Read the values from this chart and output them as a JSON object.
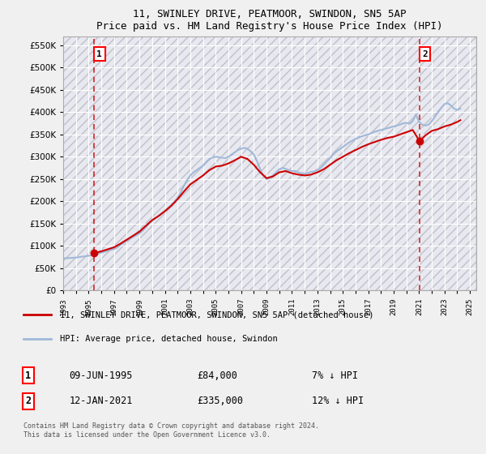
{
  "title": "11, SWINLEY DRIVE, PEATMOOR, SWINDON, SN5 5AP",
  "subtitle": "Price paid vs. HM Land Registry's House Price Index (HPI)",
  "ylabel_ticks": [
    "£0",
    "£50K",
    "£100K",
    "£150K",
    "£200K",
    "£250K",
    "£300K",
    "£350K",
    "£400K",
    "£450K",
    "£500K",
    "£550K"
  ],
  "ytick_values": [
    0,
    50000,
    100000,
    150000,
    200000,
    250000,
    300000,
    350000,
    400000,
    450000,
    500000,
    550000
  ],
  "ylim": [
    0,
    570000
  ],
  "xlim_start": 1993.0,
  "xlim_end": 2025.5,
  "background_color": "#f0f0f0",
  "plot_bg_color": "#e8e8f0",
  "grid_color": "#ffffff",
  "hpi_line_color": "#a0b8d8",
  "price_line_color": "#cc0000",
  "sale1_x": 1995.44,
  "sale1_y": 84000,
  "sale2_x": 2021.04,
  "sale2_y": 335000,
  "legend_label1": "11, SWINLEY DRIVE, PEATMOOR, SWINDON, SN5 5AP (detached house)",
  "legend_label2": "HPI: Average price, detached house, Swindon",
  "annotation1_label": "1",
  "annotation1_date": "09-JUN-1995",
  "annotation1_price": "£84,000",
  "annotation1_hpi": "7% ↓ HPI",
  "annotation2_label": "2",
  "annotation2_date": "12-JAN-2021",
  "annotation2_price": "£335,000",
  "annotation2_hpi": "12% ↓ HPI",
  "copyright_text": "Contains HM Land Registry data © Crown copyright and database right 2024.\nThis data is licensed under the Open Government Licence v3.0.",
  "hpi_data_x": [
    1993.0,
    1993.25,
    1993.5,
    1993.75,
    1994.0,
    1994.25,
    1994.5,
    1994.75,
    1995.0,
    1995.25,
    1995.5,
    1995.75,
    1996.0,
    1996.25,
    1996.5,
    1996.75,
    1997.0,
    1997.25,
    1997.5,
    1997.75,
    1998.0,
    1998.25,
    1998.5,
    1998.75,
    1999.0,
    1999.25,
    1999.5,
    1999.75,
    2000.0,
    2000.25,
    2000.5,
    2000.75,
    2001.0,
    2001.25,
    2001.5,
    2001.75,
    2002.0,
    2002.25,
    2002.5,
    2002.75,
    2003.0,
    2003.25,
    2003.5,
    2003.75,
    2004.0,
    2004.25,
    2004.5,
    2004.75,
    2005.0,
    2005.25,
    2005.5,
    2005.75,
    2006.0,
    2006.25,
    2006.5,
    2006.75,
    2007.0,
    2007.25,
    2007.5,
    2007.75,
    2008.0,
    2008.25,
    2008.5,
    2008.75,
    2009.0,
    2009.25,
    2009.5,
    2009.75,
    2010.0,
    2010.25,
    2010.5,
    2010.75,
    2011.0,
    2011.25,
    2011.5,
    2011.75,
    2012.0,
    2012.25,
    2012.5,
    2012.75,
    2013.0,
    2013.25,
    2013.5,
    2013.75,
    2014.0,
    2014.25,
    2014.5,
    2014.75,
    2015.0,
    2015.25,
    2015.5,
    2015.75,
    2016.0,
    2016.25,
    2016.5,
    2016.75,
    2017.0,
    2017.25,
    2017.5,
    2017.75,
    2018.0,
    2018.25,
    2018.5,
    2018.75,
    2019.0,
    2019.25,
    2019.5,
    2019.75,
    2020.0,
    2020.25,
    2020.5,
    2020.75,
    2021.0,
    2021.25,
    2021.5,
    2021.75,
    2022.0,
    2022.25,
    2022.5,
    2022.75,
    2023.0,
    2023.25,
    2023.5,
    2023.75,
    2024.0,
    2024.25
  ],
  "hpi_data_y": [
    72000,
    72500,
    73000,
    73500,
    74000,
    75000,
    76000,
    77000,
    78000,
    79000,
    81000,
    83000,
    85000,
    87000,
    89000,
    91000,
    93000,
    97000,
    102000,
    107000,
    112000,
    116000,
    120000,
    124000,
    128000,
    134000,
    142000,
    150000,
    156000,
    162000,
    168000,
    173000,
    178000,
    185000,
    192000,
    199000,
    208000,
    220000,
    235000,
    248000,
    258000,
    265000,
    270000,
    275000,
    280000,
    288000,
    295000,
    298000,
    300000,
    299000,
    298000,
    297000,
    300000,
    305000,
    310000,
    315000,
    318000,
    320000,
    318000,
    312000,
    305000,
    290000,
    272000,
    258000,
    250000,
    252000,
    258000,
    265000,
    272000,
    275000,
    273000,
    270000,
    268000,
    268000,
    265000,
    263000,
    262000,
    264000,
    266000,
    267000,
    270000,
    275000,
    282000,
    290000,
    297000,
    305000,
    312000,
    317000,
    322000,
    327000,
    332000,
    336000,
    340000,
    343000,
    346000,
    348000,
    350000,
    353000,
    356000,
    358000,
    360000,
    362000,
    364000,
    366000,
    368000,
    370000,
    372000,
    375000,
    376000,
    374000,
    380000,
    395000,
    378000,
    372000,
    370000,
    372000,
    380000,
    390000,
    400000,
    410000,
    418000,
    420000,
    415000,
    408000,
    405000,
    408000
  ],
  "price_data_x": [
    1993.0,
    1993.25,
    1993.5,
    1993.75,
    1994.0,
    1994.25,
    1994.5,
    1994.75,
    1995.0,
    1995.25,
    1995.44,
    1996.0,
    1997.0,
    1997.5,
    1998.0,
    1998.5,
    1999.0,
    1999.5,
    2000.0,
    2000.5,
    2001.0,
    2001.5,
    2002.0,
    2002.5,
    2003.0,
    2003.5,
    2004.0,
    2004.5,
    2005.0,
    2005.5,
    2006.0,
    2006.5,
    2007.0,
    2007.5,
    2008.0,
    2008.5,
    2009.0,
    2009.5,
    2010.0,
    2010.5,
    2011.0,
    2011.5,
    2012.0,
    2012.5,
    2013.0,
    2013.5,
    2014.0,
    2014.5,
    2015.0,
    2015.5,
    2016.0,
    2016.5,
    2017.0,
    2017.5,
    2018.0,
    2018.5,
    2019.0,
    2019.5,
    2020.0,
    2020.5,
    2021.04,
    2021.5,
    2022.0,
    2022.5,
    2023.0,
    2023.5,
    2024.0,
    2024.25
  ],
  "price_data_y": [
    null,
    null,
    null,
    null,
    null,
    null,
    null,
    null,
    null,
    null,
    84000,
    88000,
    97000,
    105000,
    114000,
    123000,
    132000,
    145000,
    158000,
    167000,
    178000,
    190000,
    205000,
    222000,
    238000,
    248000,
    258000,
    270000,
    278000,
    280000,
    285000,
    292000,
    300000,
    295000,
    282000,
    265000,
    252000,
    256000,
    265000,
    268000,
    263000,
    260000,
    258000,
    260000,
    265000,
    272000,
    282000,
    292000,
    300000,
    308000,
    315000,
    322000,
    328000,
    333000,
    338000,
    342000,
    345000,
    350000,
    355000,
    360000,
    335000,
    348000,
    358000,
    362000,
    368000,
    372000,
    378000,
    382000
  ],
  "hatch_pattern": "///",
  "hatch_color": "#c0c0c8"
}
